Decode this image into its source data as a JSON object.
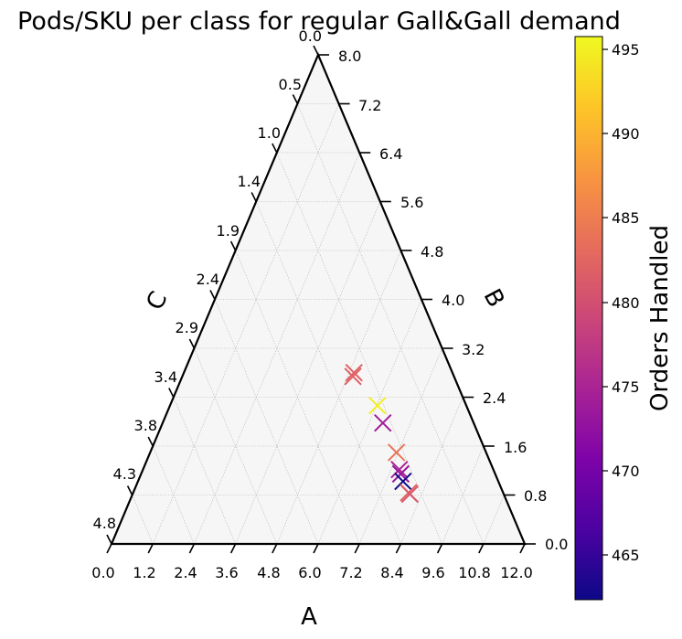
{
  "chart_data": {
    "type": "scatter",
    "subtype": "ternary",
    "title": "Pods/SKU per class for regular Gall&Gall demand",
    "marker": "x",
    "axes": {
      "A": {
        "label": "A",
        "range": [
          0.0,
          12.0
        ],
        "ticks": [
          "0.0",
          "1.2",
          "2.4",
          "3.6",
          "4.8",
          "6.0",
          "7.2",
          "8.4",
          "9.6",
          "10.8",
          "12.0"
        ]
      },
      "B": {
        "label": "B",
        "range": [
          0.0,
          8.0
        ],
        "ticks": [
          "0.0",
          "0.8",
          "1.6",
          "2.4",
          "3.2",
          "4.0",
          "4.8",
          "5.6",
          "6.4",
          "7.2",
          "8.0"
        ]
      },
      "C": {
        "label": "C",
        "range": [
          0.0,
          4.8
        ],
        "ticks": [
          "4.8",
          "4.3",
          "3.8",
          "3.4",
          "2.9",
          "2.4",
          "1.9",
          "1.4",
          "1.0",
          "0.5",
          "0.0"
        ]
      }
    },
    "grid": true,
    "colorbar": {
      "label": "Orders Handled",
      "range": [
        462.2,
        495.8
      ],
      "ticks": [
        465,
        470,
        475,
        480,
        485,
        490,
        495
      ],
      "colormap": "plasma"
    },
    "points": [
      {
        "a": 6.05,
        "b": 3.43,
        "c": 1.4,
        "orders": 482
      },
      {
        "a": 6.08,
        "b": 3.36,
        "c": 1.44,
        "orders": 482
      },
      {
        "a": 7.35,
        "b": 2.76,
        "c": 1.26,
        "orders": 495
      },
      {
        "a": 7.82,
        "b": 2.42,
        "c": 1.29,
        "orders": 474
      },
      {
        "a": 8.65,
        "b": 1.81,
        "c": 1.26,
        "orders": 484
      },
      {
        "a": 9.0,
        "b": 1.47,
        "c": 1.32,
        "orders": 475
      },
      {
        "a": 9.08,
        "b": 1.38,
        "c": 1.32,
        "orders": 473
      },
      {
        "a": 9.25,
        "b": 1.23,
        "c": 1.33,
        "orders": 462
      },
      {
        "a": 9.55,
        "b": 1.0,
        "c": 1.31,
        "orders": 482
      },
      {
        "a": 9.6,
        "b": 0.97,
        "c": 1.3,
        "orders": 481
      }
    ]
  }
}
